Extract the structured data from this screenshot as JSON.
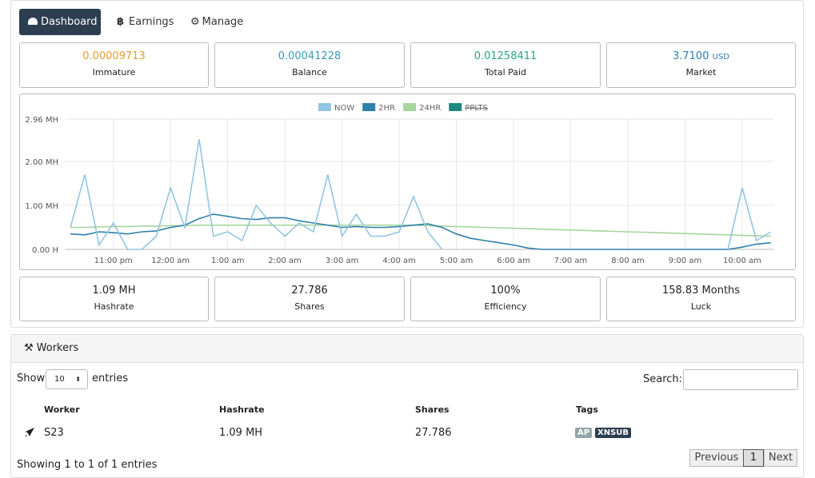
{
  "tabs": [
    "Dashboard",
    "Earnings",
    "Manage"
  ],
  "top_stats": [
    {
      "value": "0.00009713",
      "label": "Immature"
    },
    {
      "value": "0.00041228",
      "label": "Balance"
    },
    {
      "value": "0.01258411",
      "label": "Total Paid"
    },
    {
      "value": "3.7100",
      "unit": "USD",
      "label": "Market"
    }
  ],
  "chart_data": {
    "type": "line",
    "x": [
      22.25,
      22.5,
      22.75,
      23,
      23.25,
      23.5,
      23.75,
      24,
      24.25,
      24.5,
      24.75,
      25,
      25.25,
      25.5,
      25.75,
      26,
      26.25,
      26.5,
      26.75,
      27,
      27.25,
      27.5,
      27.75,
      28,
      28.25,
      28.5,
      28.75,
      29,
      29.25,
      29.5,
      29.75,
      30,
      30.25,
      30.5,
      30.75,
      31,
      31.25,
      31.5,
      31.75,
      32,
      32.25,
      32.5,
      32.75,
      33,
      33.25,
      33.5,
      33.75,
      34,
      34.25,
      34.5
    ],
    "series": [
      {
        "name": "NOW",
        "color": "#92c5e2",
        "values": [
          0.5,
          1.7,
          0.1,
          0.6,
          0,
          0,
          0.3,
          1.4,
          0.5,
          2.5,
          0.3,
          0.4,
          0.2,
          1.0,
          0.6,
          0.3,
          0.6,
          0.4,
          1.7,
          0.3,
          0.8,
          0.3,
          0.3,
          0.4,
          1.2,
          0.4,
          0,
          null,
          null,
          null,
          null,
          null,
          null,
          null,
          null,
          null,
          null,
          null,
          null,
          null,
          null,
          null,
          null,
          null,
          null,
          null,
          0,
          1.4,
          0.2,
          0.4
        ]
      },
      {
        "name": "2HR",
        "color": "#2f80aa",
        "values": [
          0.35,
          0.33,
          0.4,
          0.38,
          0.35,
          0.4,
          0.42,
          0.5,
          0.55,
          0.7,
          0.8,
          0.75,
          0.7,
          0.68,
          0.72,
          0.72,
          0.65,
          0.6,
          0.55,
          0.5,
          0.52,
          0.5,
          0.5,
          0.52,
          0.55,
          0.58,
          0.5,
          0.35,
          0.25,
          0.2,
          0.15,
          0.1,
          0.03,
          0,
          0,
          0,
          0,
          0,
          0,
          0,
          0,
          0,
          0,
          0,
          0,
          0,
          0,
          0.05,
          0.12,
          0.15
        ]
      },
      {
        "name": "24HR",
        "color": "#a6d59e",
        "values": [
          0.5,
          0.5,
          0.51,
          0.52,
          0.52,
          0.53,
          0.53,
          0.54,
          0.54,
          0.55,
          0.55,
          0.55,
          0.55,
          0.55,
          0.55,
          0.55,
          0.55,
          0.55,
          0.55,
          0.55,
          0.55,
          0.55,
          0.55,
          0.55,
          0.55,
          0.54,
          0.53,
          0.52,
          0.51,
          0.5,
          0.49,
          0.48,
          0.47,
          0.46,
          0.45,
          0.44,
          0.43,
          0.42,
          0.41,
          0.4,
          0.39,
          0.38,
          0.37,
          0.36,
          0.35,
          0.34,
          0.33,
          0.32,
          0.31,
          0.3
        ]
      },
      {
        "name": "PPLTS",
        "color": "#1a8a7c",
        "hidden": true
      }
    ],
    "xlim": [
      22.15,
      34.56
    ],
    "xticks": [
      {
        "value": 23,
        "label": "11:00 pm"
      },
      {
        "value": 24,
        "label": "12:00 am"
      },
      {
        "value": 25,
        "label": "1:00 am"
      },
      {
        "value": 26,
        "label": "2:00 am"
      },
      {
        "value": 27,
        "label": "3:00 am"
      },
      {
        "value": 28,
        "label": "4:00 am"
      },
      {
        "value": 29,
        "label": "5:00 am"
      },
      {
        "value": 30,
        "label": "6:00 am"
      },
      {
        "value": 31,
        "label": "7:00 am"
      },
      {
        "value": 32,
        "label": "8:00 am"
      },
      {
        "value": 33,
        "label": "9:00 am"
      },
      {
        "value": 34,
        "label": "10:00 am"
      }
    ],
    "ylim": [
      0,
      2.96
    ],
    "yticks": [
      {
        "value": 0,
        "label": "0.00 H"
      },
      {
        "value": 1,
        "label": "1.00 MH"
      },
      {
        "value": 2,
        "label": "2.00 MH"
      },
      {
        "value": 2.96,
        "label": "2.96 MH"
      }
    ],
    "grid": true
  },
  "bottom_stats": [
    {
      "value": "1.09 MH",
      "label": "Hashrate"
    },
    {
      "value": "27.786",
      "label": "Shares"
    },
    {
      "value": "100%",
      "label": "Efficiency"
    },
    {
      "value": "158.83 Months",
      "label": "Luck"
    }
  ],
  "workers": {
    "title": "Workers",
    "show_label": "Show",
    "page_size": "10",
    "entries_label": "entries",
    "search_label": "Search:",
    "columns": [
      "Worker",
      "Hashrate",
      "Shares",
      "Tags"
    ],
    "rows": [
      {
        "worker": "S23",
        "hashrate": "1.09 MH",
        "shares": "27.786",
        "tags": [
          "AP",
          "XNSUB"
        ]
      }
    ],
    "info": "Showing 1 to 1 of 1 entries",
    "pagination": [
      "Previous",
      "1",
      "Next"
    ]
  }
}
